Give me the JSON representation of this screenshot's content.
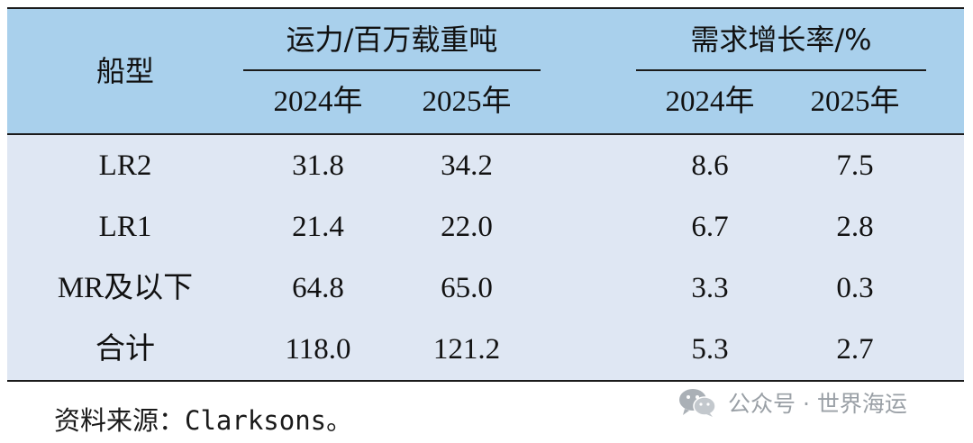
{
  "table": {
    "header": {
      "ship_type": "船型",
      "capacity_group": "运力/百万载重吨",
      "demand_group": "需求增长率/%",
      "years": [
        "2024年",
        "2025年",
        "2024年",
        "2025年"
      ]
    },
    "rows": [
      {
        "type": "LR2",
        "cap_2024": "31.8",
        "cap_2025": "34.2",
        "dem_2024": "8.6",
        "dem_2025": "7.5"
      },
      {
        "type": "LR1",
        "cap_2024": "21.4",
        "cap_2025": "22.0",
        "dem_2024": "6.7",
        "dem_2025": "2.8"
      },
      {
        "type": "MR及以下",
        "cap_2024": "64.8",
        "cap_2025": "65.0",
        "dem_2024": "3.3",
        "dem_2025": "0.3"
      },
      {
        "type": "合计",
        "cap_2024": "118.0",
        "cap_2025": "121.2",
        "dem_2024": "5.3",
        "dem_2025": "2.7"
      }
    ],
    "colors": {
      "header_bg": "#a9d0ec",
      "body_bg": "#dfe7f3",
      "rule": "#1b1b1b"
    }
  },
  "source_note": "资料来源：Clarksons。",
  "watermark": {
    "text": "公众号 · 世界海运",
    "icon": "wechat-icon"
  }
}
